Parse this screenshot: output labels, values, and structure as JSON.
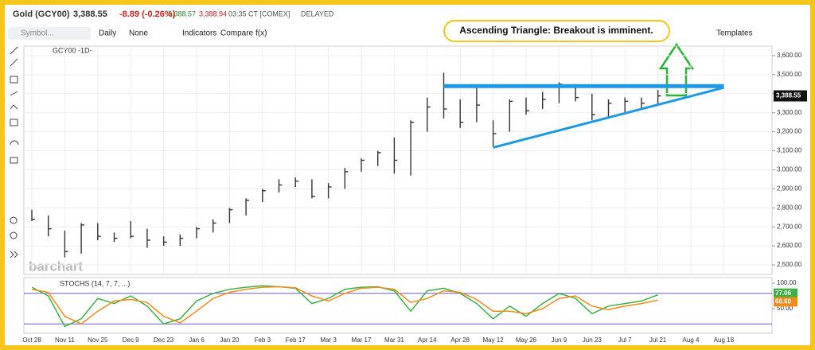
{
  "header": {
    "symbol": "Gold (GCY00)",
    "price": "3,388.55",
    "change": "-8.89 (-0.26%)",
    "bid": "3,388.57",
    "ask": "3,388.94",
    "time": "03:35 CT [COMEX]",
    "status": "DELAYED"
  },
  "toolbar": {
    "search": "Symbol...",
    "interval": "Daily",
    "chart_style": "None",
    "indicators": "Indicators",
    "compare": "Compare",
    "fx": "f(x)",
    "templates": "Templates"
  },
  "annotation_box": "Ascending Triangle:  Breakout is imminent.",
  "watermark": "barchart",
  "chart_data": [
    {
      "type": "ohlc",
      "label": "GCY00 -1D-",
      "categories": [
        "Oct 28",
        null,
        "Nov 11",
        null,
        "Nov 25",
        null,
        "Dec 9",
        null,
        "Dec 23",
        null,
        "Jan 6",
        null,
        "Jan 20",
        null,
        "Feb 3",
        null,
        "Feb 17",
        null,
        "Mar 3",
        null,
        "Mar 17",
        null,
        "Mar 31",
        null,
        "Apr 14",
        null,
        "Apr 28",
        null,
        "May 12",
        null,
        "May 26",
        null,
        "Jun 9",
        null,
        "Jun 23",
        null,
        "Jul 7",
        null,
        "Jul 21",
        null,
        "Aug 4",
        null,
        "Aug 18"
      ],
      "high": [
        2790,
        2760,
        2680,
        2720,
        2720,
        2670,
        2730,
        2690,
        2650,
        2660,
        2700,
        2740,
        2800,
        2850,
        2900,
        2950,
        2960,
        2950,
        2930,
        3010,
        3060,
        3100,
        3170,
        3260,
        3380,
        3510,
        3370,
        3440,
        3260,
        3370,
        3380,
        3410,
        3460,
        3450,
        3400,
        3370,
        3380,
        3380,
        3420,
        null,
        null,
        null,
        null
      ],
      "low": [
        2730,
        2650,
        2540,
        2560,
        2630,
        2620,
        2640,
        2590,
        2600,
        2600,
        2640,
        2670,
        2720,
        2760,
        2830,
        2880,
        2910,
        2850,
        2850,
        2900,
        2990,
        3020,
        2980,
        2970,
        3200,
        3270,
        3220,
        3250,
        3120,
        3200,
        3290,
        3320,
        3350,
        3360,
        3260,
        3280,
        3300,
        3320,
        3340,
        null,
        null,
        null,
        null
      ],
      "values": [
        2740,
        2690,
        2570,
        2710,
        2650,
        2640,
        2650,
        2630,
        2620,
        2640,
        2690,
        2720,
        2790,
        2840,
        2890,
        2920,
        2940,
        2860,
        2910,
        2990,
        3050,
        3090,
        3050,
        3250,
        3330,
        3320,
        3250,
        3340,
        3190,
        3360,
        3310,
        3370,
        3450,
        3380,
        3290,
        3350,
        3360,
        3350,
        3388.55,
        null,
        null,
        null,
        null
      ],
      "last_label": "3,388.55",
      "color": "#333333",
      "ylim": [
        2450,
        3650
      ],
      "yticks": [
        {
          "value": 2500,
          "label": "2,500.00"
        },
        {
          "value": 2600,
          "label": "2,600.00"
        },
        {
          "value": 2700,
          "label": "2,700.00"
        },
        {
          "value": 2800,
          "label": "2,800.00"
        },
        {
          "value": 2900,
          "label": "2,900.00"
        },
        {
          "value": 3000,
          "label": "3,000.00"
        },
        {
          "value": 3100,
          "label": "3,100.00"
        },
        {
          "value": 3200,
          "label": "3,200.00"
        },
        {
          "value": 3300,
          "label": "3,300.00"
        },
        {
          "value": 3400,
          "label": "3,400.00"
        },
        {
          "value": 3500,
          "label": "3,500.00"
        },
        {
          "value": 3600,
          "label": "3,600.00"
        }
      ],
      "grid": true,
      "trendlines": [
        {
          "color": "#1e9be0",
          "start": [
            25,
            3440
          ],
          "end": [
            42,
            3440
          ]
        },
        {
          "color": "#1e9be0",
          "start": [
            28,
            3117
          ],
          "end": [
            42,
            3432
          ]
        }
      ]
    },
    {
      "type": "line",
      "label": "STOCHS (14, 7, 7, ...)",
      "series": [
        {
          "color": "#3cb043",
          "values": [
            92,
            75,
            15,
            30,
            70,
            60,
            75,
            55,
            20,
            30,
            65,
            80,
            88,
            92,
            95,
            93,
            90,
            60,
            70,
            88,
            92,
            93,
            85,
            45,
            85,
            90,
            80,
            60,
            30,
            55,
            35,
            60,
            80,
            70,
            40,
            55,
            60,
            65,
            77.06
          ]
        },
        {
          "color": "#f08c1a",
          "values": [
            88,
            82,
            35,
            20,
            45,
            65,
            68,
            62,
            35,
            22,
            45,
            70,
            82,
            88,
            92,
            93,
            91,
            75,
            65,
            80,
            90,
            92,
            88,
            62,
            70,
            85,
            82,
            68,
            45,
            45,
            40,
            50,
            70,
            75,
            55,
            48,
            55,
            60,
            66.6
          ],
          "last_label": "66.60"
        }
      ],
      "ylim": [
        0,
        100
      ],
      "yticks": [
        {
          "value": 100,
          "label": "100.00"
        },
        {
          "value": 50,
          "label": "50.00"
        }
      ],
      "bands": [
        80,
        20
      ]
    }
  ]
}
